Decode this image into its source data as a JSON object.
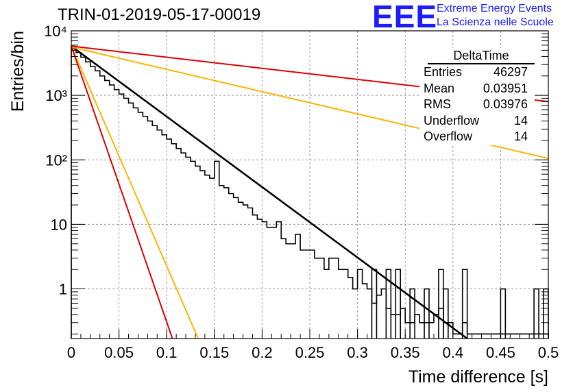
{
  "header": {
    "run_title": "TRIN-01-2019-05-17-00019",
    "logo_mark": "EEE",
    "logo_line1": "Extreme Energy Events",
    "logo_line2": "La Scienza nelle Scuole",
    "logo_color": "#1c1cff"
  },
  "stats_box": {
    "title": "DeltaTime",
    "rows": [
      {
        "label": "Entries",
        "value": "46297"
      },
      {
        "label": "Mean",
        "value": "0.03951"
      },
      {
        "label": "RMS",
        "value": "0.03976"
      },
      {
        "label": "Underflow",
        "value": "14"
      },
      {
        "label": "Overflow",
        "value": "14"
      }
    ]
  },
  "chart_data": {
    "type": "line",
    "title": "TRIN-01-2019-05-17-00019",
    "xlabel": "Time difference [s]",
    "ylabel": "Entries/bin",
    "xlim": [
      0,
      0.5
    ],
    "ylim": [
      0.17,
      10000
    ],
    "yscale": "log",
    "grid": true,
    "x_ticks": [
      0,
      0.05,
      0.1,
      0.15,
      0.2,
      0.25,
      0.3,
      0.35,
      0.4,
      0.45,
      0.5
    ],
    "x_tick_labels": [
      "0",
      "0.05",
      "0.1",
      "0.15",
      "0.2",
      "0.25",
      "0.3",
      "0.35",
      "0.4",
      "0.45",
      "0.5"
    ],
    "y_ticks": [
      1,
      10,
      100,
      1000,
      10000
    ],
    "y_tick_labels": [
      "1",
      "10",
      "10²",
      "10³",
      "10⁴"
    ],
    "histogram": {
      "bin_width": 0.005,
      "color": "#000000",
      "counts": [
        5500,
        4600,
        3900,
        3300,
        2800,
        2400,
        2000,
        1700,
        1450,
        1230,
        1050,
        900,
        760,
        640,
        545,
        470,
        400,
        340,
        290,
        245,
        210,
        178,
        150,
        128,
        110,
        95,
        80,
        68,
        58,
        52,
        95,
        40,
        37,
        30,
        26,
        22,
        20,
        18,
        14,
        12,
        11,
        9,
        9,
        11,
        6,
        5,
        5,
        7,
        4,
        4,
        4,
        3,
        3,
        2,
        3,
        3,
        2,
        2,
        1.5,
        1,
        2,
        1.2,
        1,
        0.6,
        0.8,
        1,
        0.5,
        0.4,
        0.4,
        0.5,
        0.3,
        0.3,
        0.4,
        0.3,
        0.3,
        0.3,
        0.4,
        0.5,
        0.3,
        0.3,
        0.2,
        0.2,
        0.3,
        0.2,
        0.2,
        0.2,
        0.2,
        0.2,
        0.2,
        0.2,
        0.2,
        0.2,
        0.2,
        0.2,
        0.2,
        0.2,
        0.2,
        0.2,
        0.2,
        0.2
      ],
      "spikes": [
        {
          "x": 0.3175,
          "value": 2
        },
        {
          "x": 0.3325,
          "value": 2
        },
        {
          "x": 0.3425,
          "value": 2
        },
        {
          "x": 0.3575,
          "value": 1
        },
        {
          "x": 0.3725,
          "value": 1
        },
        {
          "x": 0.3875,
          "value": 2
        },
        {
          "x": 0.3925,
          "value": 1
        },
        {
          "x": 0.4125,
          "value": 2
        },
        {
          "x": 0.4525,
          "value": 1
        },
        {
          "x": 0.4875,
          "value": 1
        },
        {
          "x": 0.4975,
          "value": 1
        }
      ]
    },
    "series": [
      {
        "color": "#000000",
        "x": [
          0,
          0.415
        ],
        "y": [
          5800,
          0.17
        ]
      },
      {
        "color": "#dd0000",
        "x": [
          0,
          0.5
        ],
        "y": [
          5800,
          800
        ]
      },
      {
        "color": "#ffb400",
        "x": [
          0,
          0.5
        ],
        "y": [
          5600,
          105
        ]
      },
      {
        "color": "#ffb400",
        "x": [
          0,
          0.133
        ],
        "y": [
          5800,
          0.17
        ]
      },
      {
        "color": "#dd0000",
        "x": [
          0,
          0.106
        ],
        "y": [
          5800,
          0.17
        ]
      }
    ]
  }
}
